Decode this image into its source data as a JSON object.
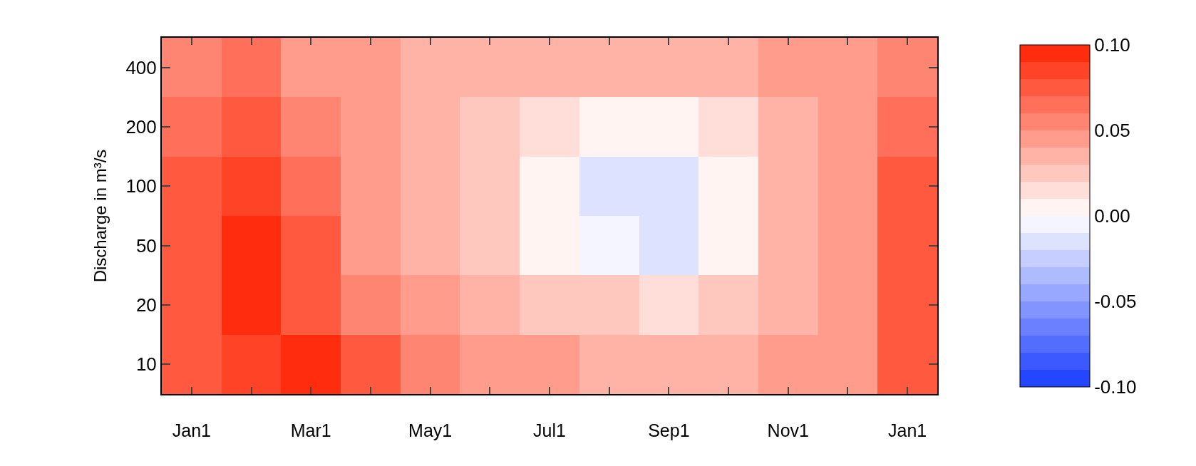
{
  "chart_data": {
    "type": "heatmap",
    "ylabel": "Discharge in m³/s",
    "categories": [
      "Jan1",
      null,
      "Mar1",
      null,
      "May1",
      null,
      "Jul1",
      null,
      "Sep1",
      null,
      "Nov1",
      null,
      "Jan1"
    ],
    "y_categories": [
      "400",
      "200",
      "100",
      "50",
      "20",
      "10"
    ],
    "cells": [
      [
        0.06,
        0.065,
        0.05,
        0.04,
        0.035,
        0.03,
        0.03,
        0.03,
        0.03,
        0.035,
        0.04,
        0.05,
        0.06
      ],
      [
        0.065,
        0.07,
        0.055,
        0.04,
        0.03,
        0.025,
        0.015,
        0.01,
        0.01,
        0.015,
        0.035,
        0.05,
        0.065
      ],
      [
        0.075,
        0.085,
        0.065,
        0.04,
        0.03,
        0.02,
        0.008,
        -0.015,
        -0.015,
        0.002,
        0.03,
        0.05,
        0.075
      ],
      [
        0.08,
        0.095,
        0.07,
        0.045,
        0.03,
        0.02,
        0.01,
        -0.005,
        -0.012,
        0.005,
        0.03,
        0.05,
        0.075
      ],
      [
        0.08,
        0.09,
        0.08,
        0.06,
        0.045,
        0.035,
        0.028,
        0.02,
        0.018,
        0.022,
        0.035,
        0.05,
        0.075
      ],
      [
        0.075,
        0.085,
        0.09,
        0.075,
        0.06,
        0.05,
        0.04,
        0.035,
        0.035,
        0.035,
        0.04,
        0.05,
        0.07
      ]
    ],
    "colors": [
      "#1a3cff",
      "#ffffff",
      "#ff2200"
    ],
    "clim": [
      -0.1,
      0.1
    ],
    "cticks": [
      {
        "value": -0.1,
        "label": "-0.10"
      },
      {
        "value": -0.05,
        "label": "-0.05"
      },
      {
        "value": 0,
        "label": "0.00"
      },
      {
        "value": 0.05,
        "label": "0.05"
      },
      {
        "value": 0.1,
        "label": "0.10"
      }
    ]
  }
}
